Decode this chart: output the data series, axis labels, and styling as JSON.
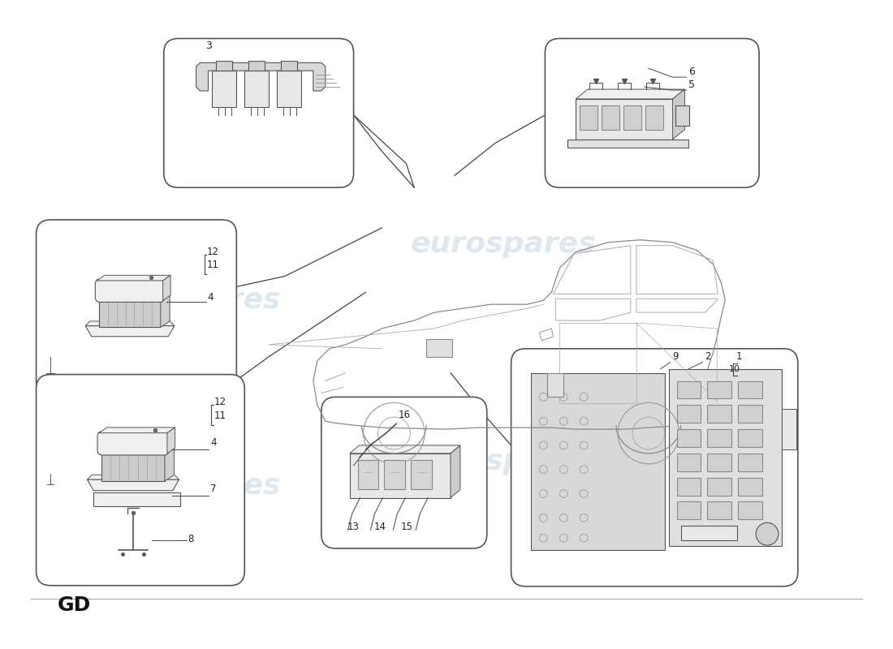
{
  "background_color": "#ffffff",
  "watermark_text": "eurospares",
  "watermark_color": "#c5d5e5",
  "gd_label": "GD",
  "line_color": "#444444",
  "box_edge_color": "#555555",
  "component_color": "#e8e8e8",
  "component_dark": "#cccccc",
  "component_light": "#f0f0f0"
}
